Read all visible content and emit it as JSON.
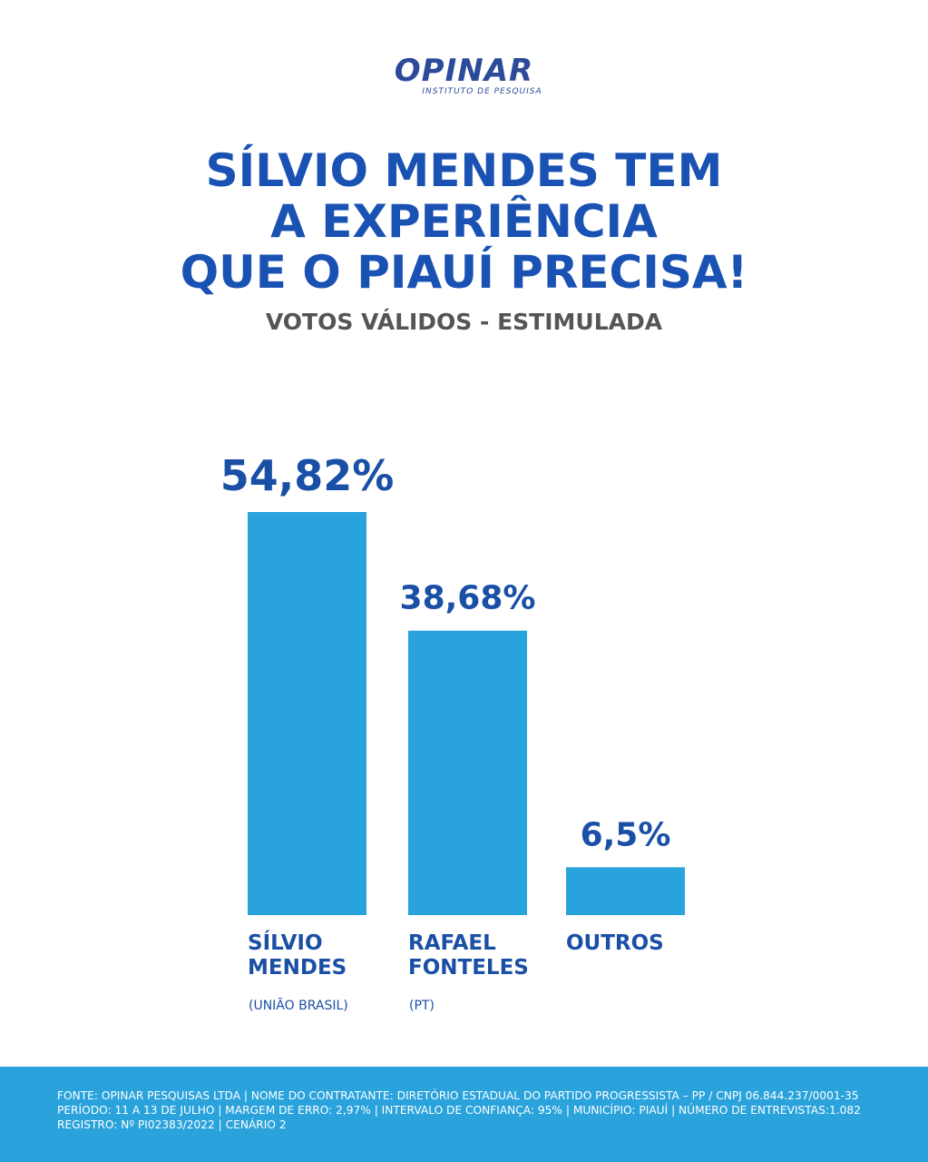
{
  "logo": {
    "name": "OPINAR",
    "tagline": "INSTITUTO DE PESQUISA"
  },
  "headline": {
    "line1": "SÍLVIO MENDES TEM",
    "line2": "A EXPERIÊNCIA",
    "line3": "QUE O PIAUÍ PRECISA!"
  },
  "subtitle": "VOTOS VÁLIDOS - ESTIMULADA",
  "chart_data": {
    "type": "bar",
    "categories": [
      "SÍLVIO MENDES",
      "RAFAEL FONTELES",
      "OUTROS"
    ],
    "category_lines": [
      [
        "SÍLVIO",
        "MENDES"
      ],
      [
        "RAFAEL",
        "FONTELES"
      ],
      [
        "OUTROS"
      ]
    ],
    "parties": [
      "(UNIÃO BRASIL)",
      "(PT)",
      ""
    ],
    "values": [
      54.82,
      38.68,
      6.5
    ],
    "value_labels": [
      "54,82%",
      "38,68%",
      "6,5%"
    ],
    "ylim": [
      0,
      54.82
    ],
    "grid": false,
    "legend": "none"
  },
  "footer": {
    "line1": "FONTE: OPINAR PESQUISAS LTDA | NOME DO CONTRATANTE: DIRETÓRIO ESTADUAL DO PARTIDO PROGRESSISTA – PP / CNPJ 06.844.237/0001-35",
    "line2": "PERÍODO: 11 A 13 DE JULHO | MARGEM DE ERRO: 2,97% | INTERVALO DE CONFIANÇA: 95% | MUNICÍPIO: PIAUÍ | NÚMERO DE ENTREVISTAS:1.082",
    "line3": "REGISTRO: Nº PI02383/2022 | CENÁRIO 2"
  },
  "colors": {
    "bar": "#29a3db",
    "title": "#1a52b4",
    "value": "#1a4fa6",
    "footer_bg": "#2aa3dc"
  }
}
